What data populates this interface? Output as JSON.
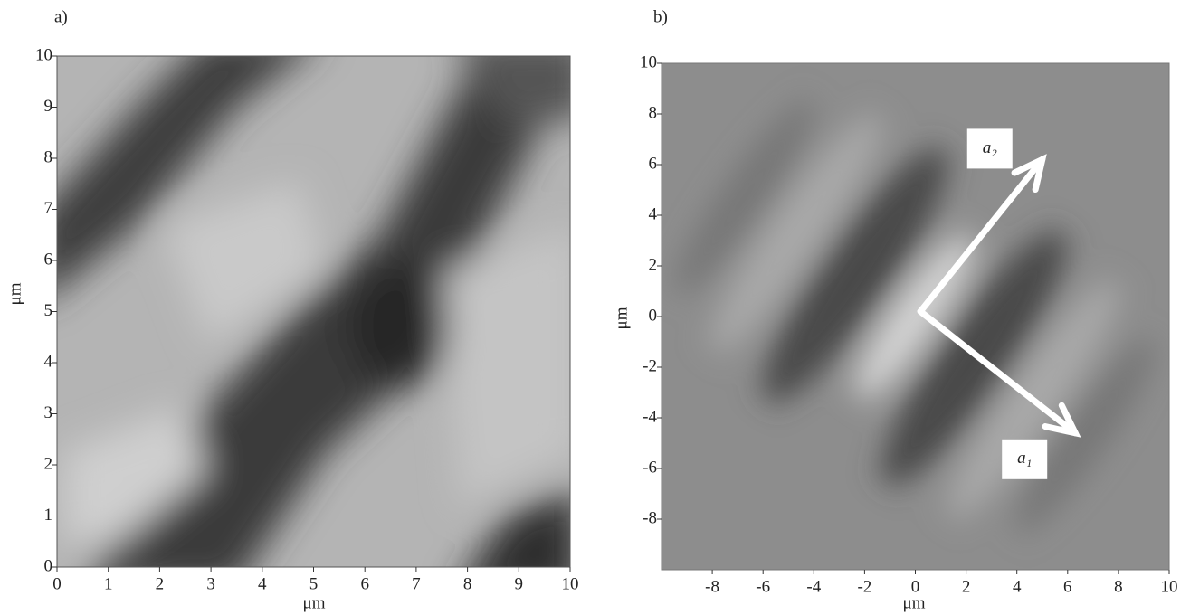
{
  "chart_data": [
    {
      "type": "image",
      "panel_label": "a)",
      "x_label": "μm",
      "y_label": "μm",
      "xlim": [
        0,
        10
      ],
      "ylim": [
        0,
        10
      ],
      "xticks": [
        0,
        1,
        2,
        3,
        4,
        5,
        6,
        7,
        8,
        9,
        10
      ],
      "yticks": [
        0,
        1,
        2,
        3,
        4,
        5,
        6,
        7,
        8,
        9,
        10
      ]
    },
    {
      "type": "image",
      "panel_label": "b)",
      "x_label": "μm",
      "y_label": "μm",
      "xlim": [
        -10,
        10
      ],
      "ylim": [
        -10,
        10
      ],
      "xticks": [
        -8,
        -6,
        -4,
        -2,
        0,
        2,
        4,
        6,
        8,
        10
      ],
      "yticks": [
        -8,
        -6,
        -4,
        -2,
        0,
        2,
        4,
        6,
        8,
        10
      ],
      "vectors": [
        {
          "label": "a₁",
          "from": [
            0.2,
            0.2
          ],
          "to": [
            6.3,
            -4.6
          ]
        },
        {
          "label": "a₂",
          "from": [
            0.2,
            0.2
          ],
          "to": [
            5,
            6.2
          ]
        }
      ]
    }
  ]
}
